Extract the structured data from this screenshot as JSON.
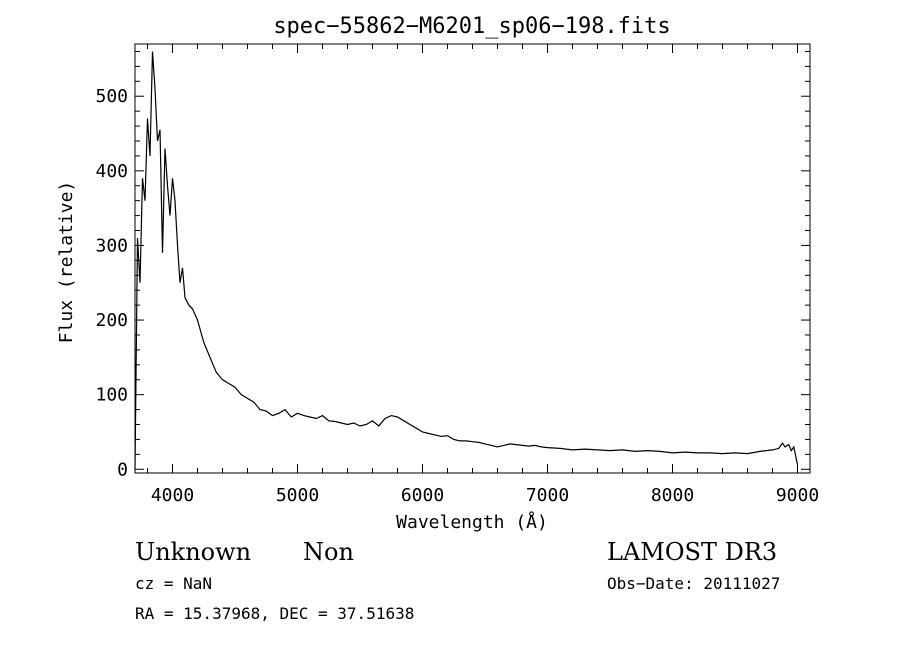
{
  "chart_data": {
    "type": "line",
    "title": "spec−55862−M6201_sp06−198.fits",
    "xlabel": "Wavelength (Å)",
    "ylabel": "Flux (relative)",
    "xlim": [
      3700,
      9100
    ],
    "ylim": [
      -5,
      570
    ],
    "xticks": [
      4000,
      5000,
      6000,
      7000,
      8000,
      9000
    ],
    "yticks": [
      0,
      100,
      200,
      300,
      400,
      500
    ],
    "grid": false,
    "legend": "none",
    "series": [
      {
        "x": [
          3700,
          3720,
          3740,
          3760,
          3780,
          3800,
          3820,
          3840,
          3860,
          3880,
          3900,
          3920,
          3940,
          3960,
          3980,
          4000,
          4020,
          4040,
          4060,
          4080,
          4100,
          4130,
          4160,
          4200,
          4250,
          4300,
          4350,
          4400,
          4450,
          4500,
          4550,
          4600,
          4650,
          4700,
          4750,
          4800,
          4850,
          4900,
          4950,
          5000,
          5050,
          5100,
          5150,
          5200,
          5250,
          5300,
          5350,
          5400,
          5450,
          5500,
          5550,
          5600,
          5650,
          5700,
          5750,
          5800,
          5850,
          5900,
          5950,
          6000,
          6050,
          6100,
          6150,
          6200,
          6250,
          6300,
          6350,
          6400,
          6450,
          6500,
          6550,
          6600,
          6650,
          6700,
          6750,
          6800,
          6850,
          6900,
          6950,
          7000,
          7100,
          7200,
          7300,
          7400,
          7500,
          7600,
          7700,
          7800,
          7900,
          8000,
          8100,
          8200,
          8300,
          8400,
          8500,
          8600,
          8700,
          8800,
          8850,
          8880,
          8900,
          8930,
          8950,
          8970,
          9000
        ],
        "y": [
          0,
          310,
          250,
          390,
          360,
          470,
          420,
          560,
          510,
          440,
          455,
          290,
          430,
          380,
          340,
          390,
          360,
          300,
          250,
          270,
          230,
          220,
          215,
          200,
          170,
          150,
          130,
          120,
          115,
          110,
          100,
          95,
          90,
          80,
          78,
          72,
          75,
          80,
          70,
          75,
          72,
          70,
          68,
          72,
          65,
          64,
          62,
          60,
          62,
          58,
          60,
          65,
          58,
          68,
          72,
          70,
          65,
          60,
          55,
          50,
          48,
          46,
          44,
          45,
          40,
          38,
          38,
          37,
          36,
          34,
          32,
          30,
          32,
          34,
          33,
          32,
          31,
          32,
          30,
          29,
          28,
          26,
          27,
          26,
          25,
          26,
          24,
          25,
          24,
          22,
          23,
          22,
          22,
          21,
          22,
          21,
          24,
          26,
          28,
          35,
          30,
          33,
          25,
          30,
          6
        ]
      }
    ]
  },
  "info": {
    "class_label": "Unknown",
    "subclass_label": "Non",
    "survey_label": "LAMOST DR3",
    "cz_text": "cz = NaN",
    "obs_date_text": "Obs−Date: 20111027",
    "coords_text": "RA =  15.37968, DEC =  37.51638"
  }
}
